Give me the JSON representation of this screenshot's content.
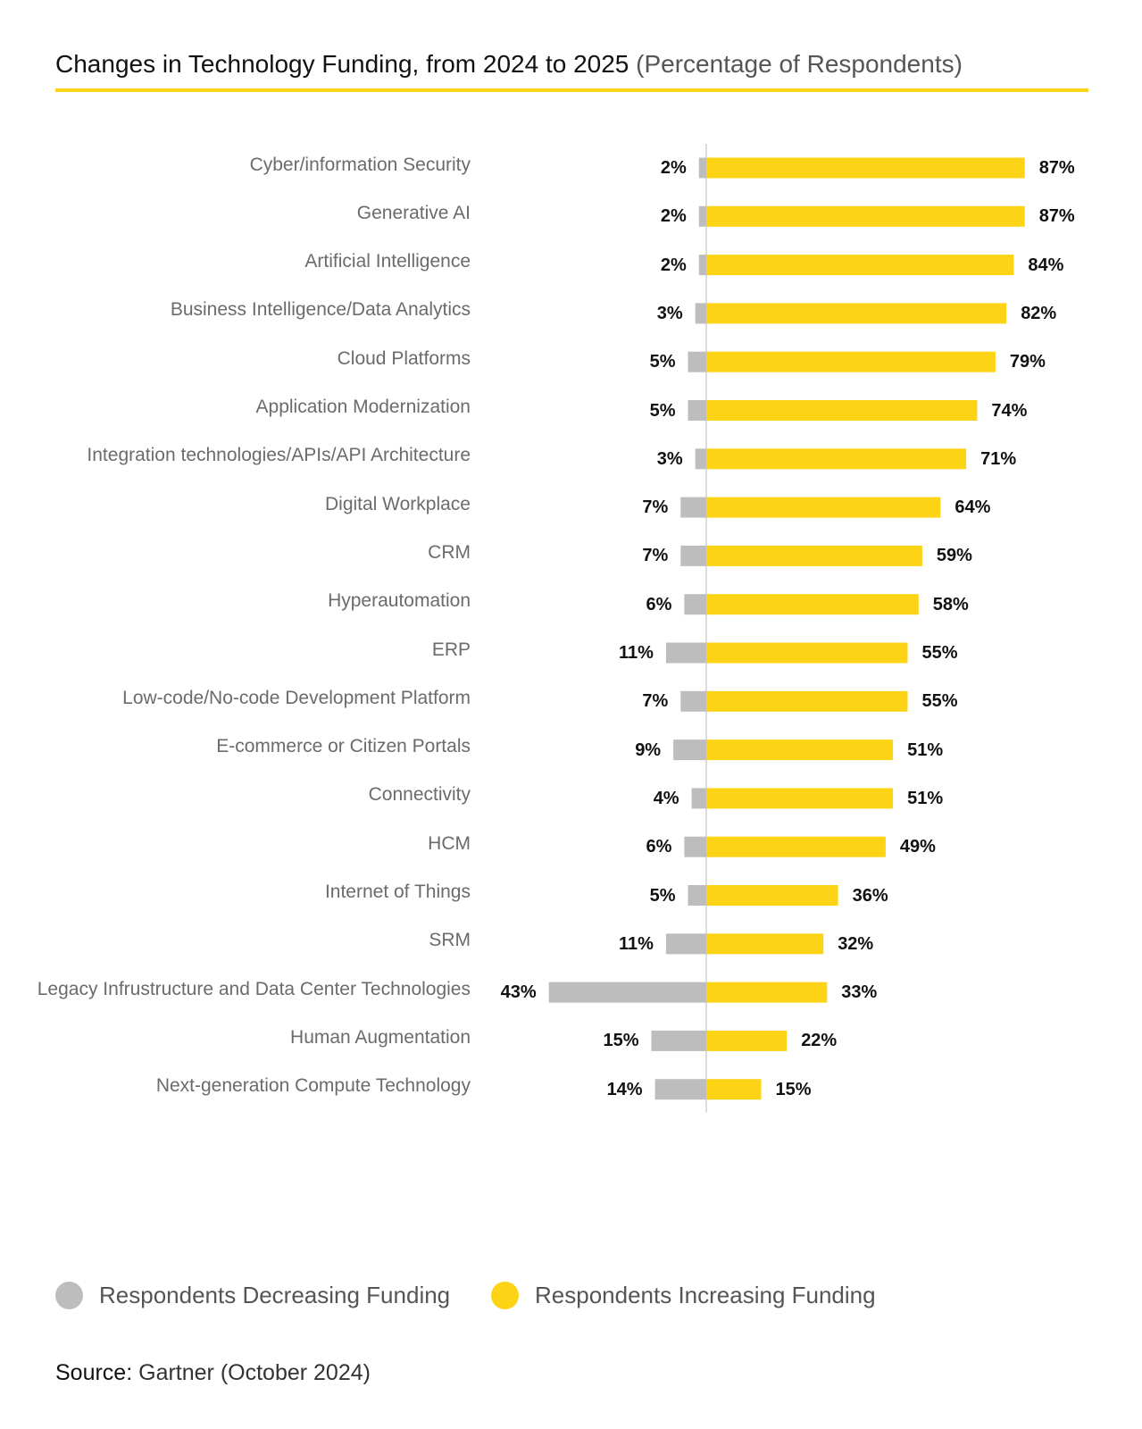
{
  "title": {
    "main": "Changes in Technology Funding, from 2024 to 2025",
    "sub": "(Percentage of Respondents)"
  },
  "colors": {
    "increase": "#FCD415",
    "decrease": "#BDBDBD",
    "axis": "#D0D0D0",
    "rule": "#FCD415"
  },
  "chart_data": {
    "type": "bar",
    "orientation": "horizontal-diverging",
    "xlim": [
      -50,
      100
    ],
    "grid": false,
    "legend_position": "bottom-left",
    "categories": [
      "Cyber/information Security",
      "Generative AI",
      "Artificial Intelligence",
      "Business Intelligence/Data Analytics",
      "Cloud Platforms",
      "Application Modernization",
      "Integration technologies/APIs/API Architecture",
      "Digital Workplace",
      "CRM",
      "Hyperautomation",
      "ERP",
      "Low-code/No-code Development Platform",
      "E-commerce or Citizen Portals",
      "Connectivity",
      "HCM",
      "Internet of Things",
      "SRM",
      "Legacy Infrustructure and Data Center Technologies",
      "Human Augmentation",
      "Next-generation Compute Technology"
    ],
    "series": [
      {
        "name": "Respondents Decreasing Funding",
        "values": [
          2,
          2,
          2,
          3,
          5,
          5,
          3,
          7,
          7,
          6,
          11,
          7,
          9,
          4,
          6,
          5,
          11,
          43,
          15,
          14
        ],
        "labels": [
          "2%",
          "2%",
          "2%",
          "3%",
          "5%",
          "5%",
          "3%",
          "7%",
          "7%",
          "6%",
          "11%",
          "7%",
          "9%",
          "4%",
          "6%",
          "5%",
          "11%",
          "43%",
          "15%",
          "14%"
        ]
      },
      {
        "name": "Respondents Increasing Funding",
        "values": [
          87,
          87,
          84,
          82,
          79,
          74,
          71,
          64,
          59,
          58,
          55,
          55,
          51,
          51,
          49,
          36,
          32,
          33,
          22,
          15
        ],
        "labels": [
          "87%",
          "87%",
          "84%",
          "82%",
          "79%",
          "74%",
          "71%",
          "64%",
          "59%",
          "58%",
          "55%",
          "55%",
          "51%",
          "51%",
          "49%",
          "36%",
          "32%",
          "33%",
          "22%",
          "15%"
        ]
      }
    ]
  },
  "source": {
    "label": "Source:",
    "text": "Gartner (October 2024)"
  }
}
